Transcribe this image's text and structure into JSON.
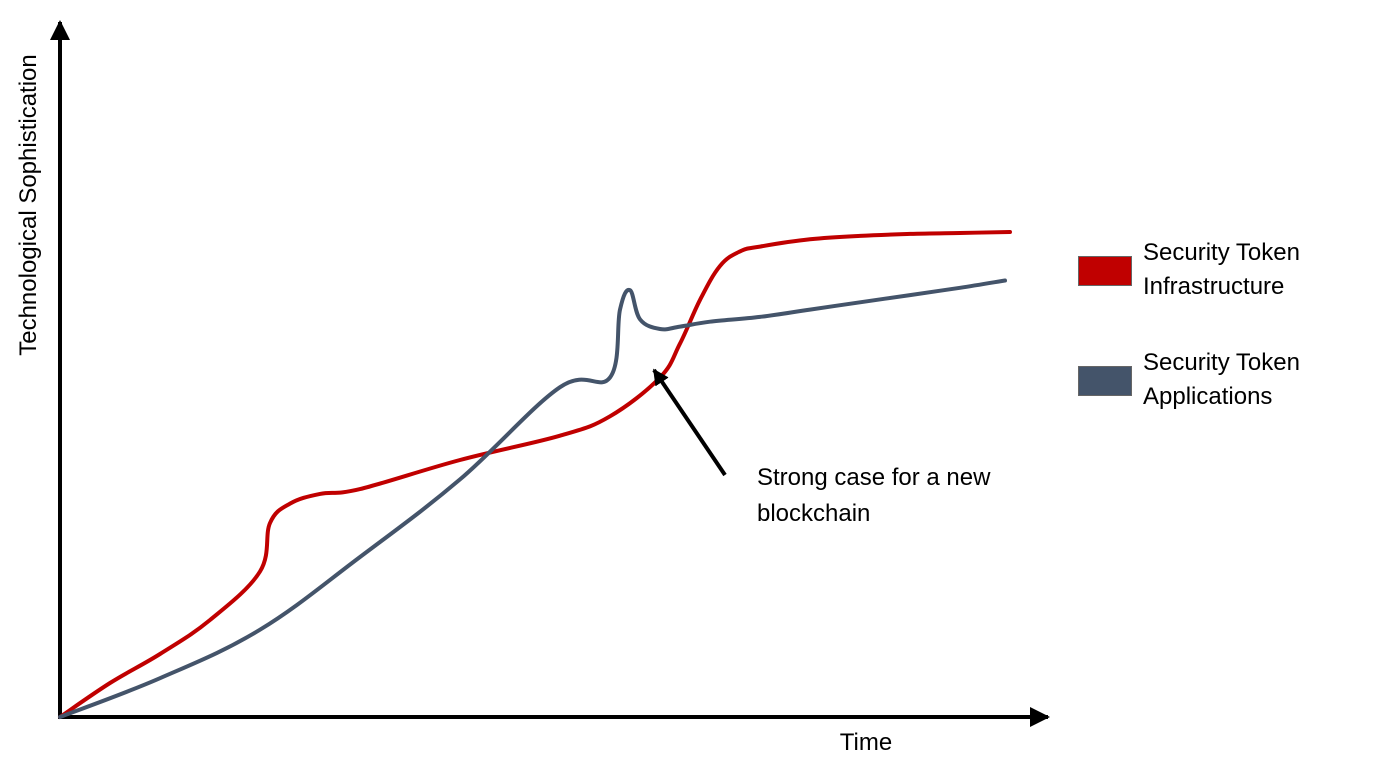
{
  "chart_data": {
    "type": "line",
    "xlabel": "Time",
    "ylabel": "Technological Sophistication",
    "grid": false,
    "legend_position": "right",
    "series": [
      {
        "name": "Security Token Infrastructure",
        "color": "#c00000",
        "x": [
          0,
          5,
          10,
          15,
          20,
          21,
          23,
          26,
          30,
          40,
          50,
          55,
          60,
          62,
          64,
          66,
          68,
          70,
          75,
          80,
          85,
          90,
          95
        ],
        "y": [
          0,
          7,
          13,
          20,
          30,
          40,
          44,
          46,
          47,
          53,
          58,
          62,
          70,
          77,
          86,
          93,
          96,
          97,
          98.5,
          99.2,
          99.6,
          99.8,
          100
        ]
      },
      {
        "name": "Security Token Applications",
        "color": "#44546a",
        "x": [
          0,
          10,
          20,
          30,
          40,
          50,
          55,
          56,
          57,
          58,
          60,
          62,
          65,
          70,
          75,
          80,
          85,
          90,
          94.5
        ],
        "y": [
          0,
          8,
          18,
          33,
          49,
          68,
          70,
          84,
          88,
          82,
          80,
          80.5,
          81.5,
          82.5,
          84,
          85.5,
          87,
          88.5,
          90
        ]
      }
    ],
    "annotations": [
      {
        "text": "Strong case for a new\nblockchain",
        "target_series": "Security Token Applications",
        "target_x": 58,
        "target_y": 76
      }
    ],
    "axis_arrows": true,
    "tick_labels": false
  },
  "styles": {
    "axis_color": "#000000",
    "background": "#ffffff"
  }
}
